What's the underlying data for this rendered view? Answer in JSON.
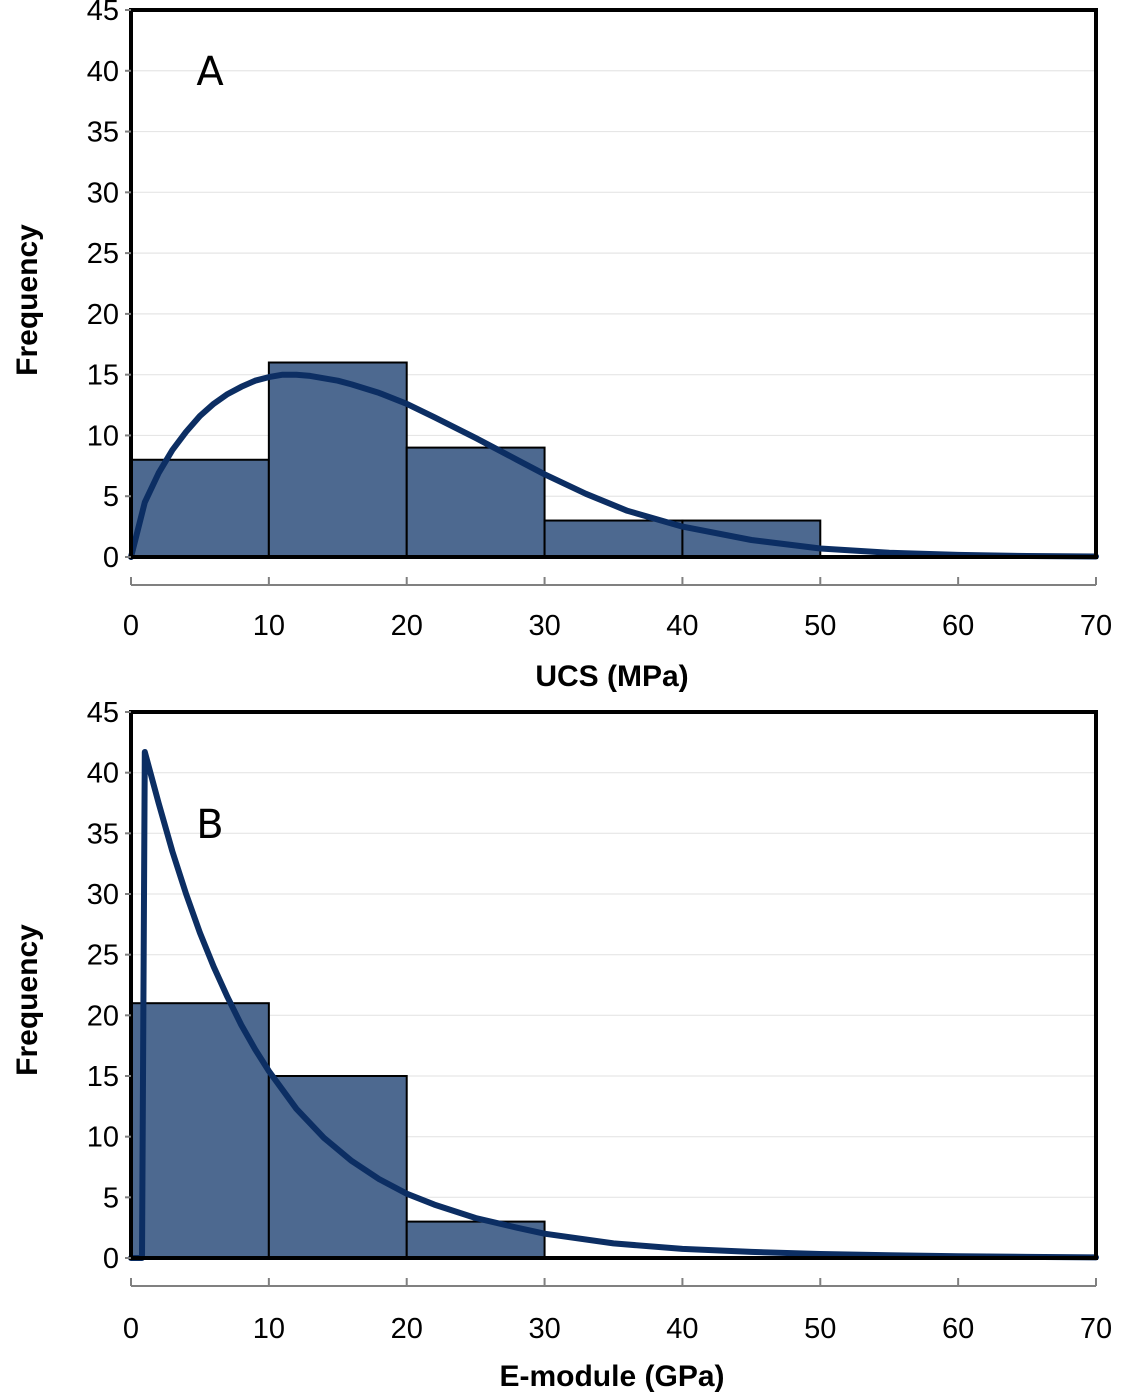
{
  "colors": {
    "bar_fill": "#4d6990",
    "bar_stroke": "#000000",
    "curve": "#0c2e63",
    "gridline": "#e6e6e6",
    "frame": "#000000"
  },
  "chart_data": [
    {
      "type": "bar",
      "panel_label": "A",
      "xlabel": "UCS (MPa)",
      "ylabel": "Frequency",
      "xlim": [
        0,
        70
      ],
      "ylim": [
        0,
        45
      ],
      "xticks": [
        0,
        10,
        20,
        30,
        40,
        50,
        60,
        70
      ],
      "yticks": [
        0,
        5,
        10,
        15,
        20,
        25,
        30,
        35,
        40,
        45
      ],
      "grid": true,
      "bins": [
        [
          0,
          10
        ],
        [
          10,
          20
        ],
        [
          20,
          30
        ],
        [
          30,
          40
        ],
        [
          40,
          50
        ]
      ],
      "values": [
        8,
        16,
        9,
        3,
        3
      ],
      "curve": {
        "x": [
          0,
          1,
          2,
          3,
          4,
          5,
          6,
          7,
          8,
          9,
          10,
          11,
          12,
          13,
          14,
          15,
          16,
          18,
          20,
          22,
          25,
          28,
          30,
          33,
          36,
          40,
          45,
          50,
          55,
          60,
          65,
          70
        ],
        "y": [
          0,
          4.5,
          6.9,
          8.8,
          10.3,
          11.6,
          12.6,
          13.4,
          14.0,
          14.5,
          14.8,
          15.0,
          15.0,
          14.9,
          14.7,
          14.5,
          14.2,
          13.5,
          12.6,
          11.5,
          9.8,
          8.0,
          6.8,
          5.2,
          3.8,
          2.5,
          1.4,
          0.7,
          0.35,
          0.17,
          0.08,
          0.04
        ]
      }
    },
    {
      "type": "bar",
      "panel_label": "B",
      "xlabel": "E-module (GPa)",
      "ylabel": "Frequency",
      "xlim": [
        0,
        70
      ],
      "ylim": [
        0,
        45
      ],
      "xticks": [
        0,
        10,
        20,
        30,
        40,
        50,
        60,
        70
      ],
      "yticks": [
        0,
        5,
        10,
        15,
        20,
        25,
        30,
        35,
        40,
        45
      ],
      "grid": true,
      "bins": [
        [
          0,
          10
        ],
        [
          10,
          20
        ],
        [
          20,
          30
        ]
      ],
      "values": [
        21,
        15,
        3
      ],
      "curve": {
        "x": [
          0,
          0.8,
          1.0,
          2,
          3,
          4,
          5,
          6,
          7,
          8,
          9,
          10,
          12,
          14,
          16,
          18,
          20,
          22,
          25,
          28,
          30,
          35,
          40,
          45,
          50,
          55,
          60,
          65,
          70
        ],
        "y": [
          0,
          0,
          41.7,
          37.5,
          33.5,
          30.0,
          26.8,
          24.0,
          21.5,
          19.2,
          17.2,
          15.4,
          12.3,
          9.9,
          8.0,
          6.5,
          5.3,
          4.4,
          3.3,
          2.5,
          2.0,
          1.2,
          0.75,
          0.5,
          0.33,
          0.22,
          0.14,
          0.09,
          0.05
        ]
      }
    }
  ]
}
